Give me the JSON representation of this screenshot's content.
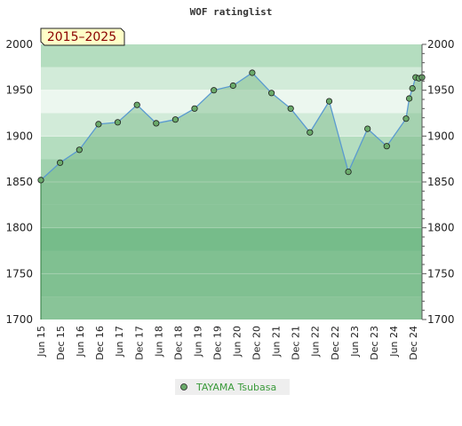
{
  "chart_data": {
    "type": "line",
    "title": "WOF ratinglist",
    "period_label": "2015–2025",
    "xlabel": "",
    "ylabel": "",
    "ylim": [
      1700,
      2000
    ],
    "yticks": [
      1700,
      1750,
      1800,
      1850,
      1900,
      1950,
      2000
    ],
    "grid": true,
    "legend_position": "bottom-center",
    "x_tick_labels": [
      "Jun 15",
      "Dec 15",
      "Jun 16",
      "Dec 16",
      "Jun 17",
      "Dec 17",
      "Jun 18",
      "Dec 18",
      "Jun 19",
      "Dec 19",
      "Jun 20",
      "Dec 20",
      "Jun 21",
      "Dec 21",
      "Jun 22",
      "Dec 22",
      "Jun 23",
      "Dec 23",
      "Jun 24",
      "Dec 24"
    ],
    "series": [
      {
        "name": "TAYAMA Tsubasa",
        "color": "#6aaa6a",
        "line_color": "#5a9ad0",
        "x": [
          "2015-06",
          "2015-12",
          "2016-06",
          "2016-12",
          "2017-06",
          "2017-12",
          "2018-06",
          "2018-12",
          "2019-06",
          "2019-12",
          "2020-06",
          "2020-12",
          "2021-06",
          "2021-12",
          "2022-06",
          "2022-12",
          "2023-06",
          "2023-12",
          "2024-06",
          "2024-12",
          "2025-01",
          "2025-02",
          "2025-03",
          "2025-04",
          "2025-05"
        ],
        "values": [
          1852,
          1871,
          1885,
          1913,
          1915,
          1934,
          1914,
          1918,
          1930,
          1950,
          1955,
          1969,
          1947,
          1930,
          1904,
          1938,
          1861,
          1908,
          1889,
          1919,
          1941,
          1952,
          1964,
          1963,
          1964
        ]
      }
    ]
  },
  "colors": {
    "band_high": "#b4ddbf",
    "band_mid": "#d2ebd9",
    "band_peak": "#ecf7ef",
    "band_low": "#9fd1ad",
    "band_lower": "#7cc394",
    "band_floor": "#8fcba1",
    "area_fill": "#6eb37e",
    "badge_bg": "#ffffc8",
    "legend_bg": "#eeeeee"
  }
}
